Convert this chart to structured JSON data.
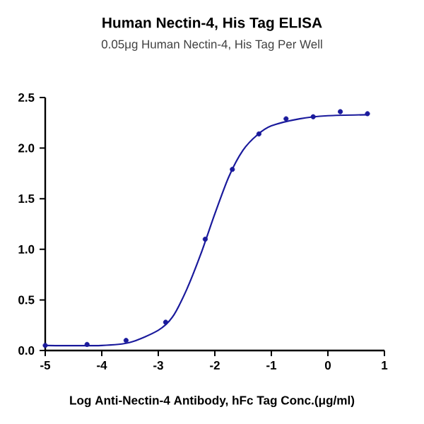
{
  "chart_data": {
    "type": "scatter",
    "title": "Human Nectin-4, His Tag ELISA",
    "subtitle": "0.05μg Human Nectin-4, His Tag Per Well",
    "xlabel": "Log Anti-Nectin-4 Antibody, hFc Tag Conc.(μg/ml)",
    "series": [
      {
        "marker": "circle",
        "color": "#1a1a9c",
        "x": [
          -5,
          -4.26,
          -3.57,
          -2.87,
          -2.17,
          -1.69,
          -1.22,
          -0.74,
          -0.26,
          0.22,
          0.7
        ],
        "values": [
          0.05,
          0.06,
          0.1,
          0.28,
          1.1,
          1.79,
          2.14,
          2.29,
          2.31,
          2.36,
          2.34
        ]
      },
      {
        "type": "line",
        "marker": "none",
        "line_style": "solid",
        "color": "#1a1a9c",
        "x": [
          -5,
          -4,
          -3.5,
          -3,
          -2.75,
          -2.5,
          -2.25,
          -2,
          -1.75,
          -1.5,
          -1.25,
          -1,
          -0.5,
          0,
          0.7
        ],
        "values": [
          0.05,
          0.05,
          0.08,
          0.2,
          0.33,
          0.6,
          0.95,
          1.35,
          1.72,
          1.98,
          2.13,
          2.22,
          2.29,
          2.32,
          2.33
        ]
      }
    ],
    "xlim": [
      -5,
      1
    ],
    "ylim": [
      0,
      2.5
    ],
    "xticks": [
      -5,
      -4,
      -3,
      -2,
      -1,
      0,
      1
    ],
    "yticks": [
      {
        "value": 0,
        "label": "0.0"
      },
      0.5,
      {
        "value": 1,
        "label": "1.0"
      },
      1.5,
      {
        "value": 2,
        "label": "2.0"
      },
      2.5
    ],
    "grid": false
  }
}
